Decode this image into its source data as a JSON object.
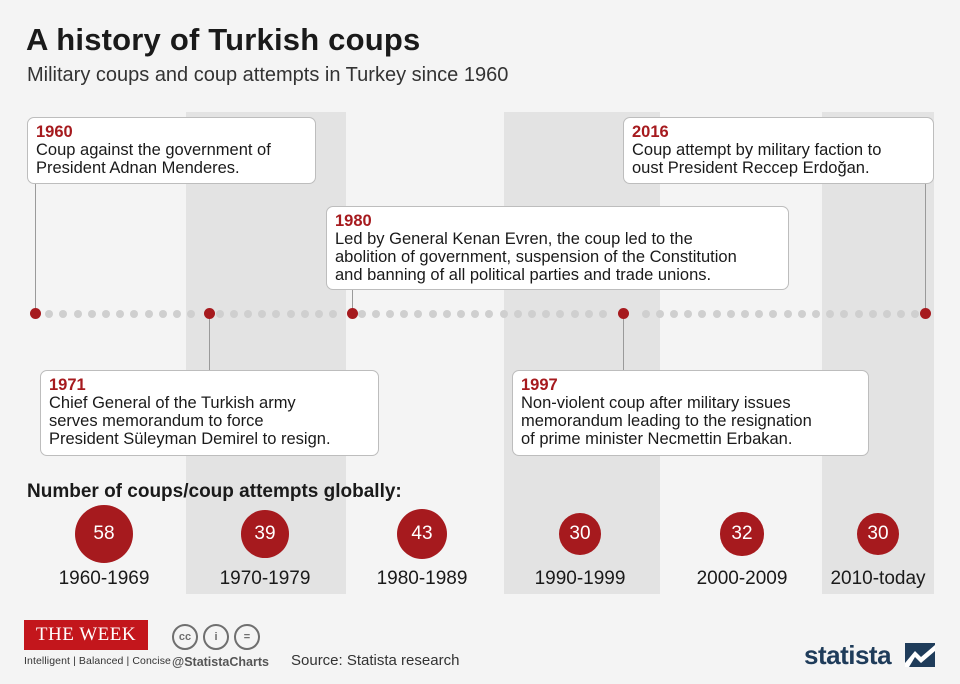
{
  "title": "A history of Turkish coups",
  "subtitle": "Military coups and coup attempts in Turkey since 1960",
  "events": [
    {
      "year": "1960",
      "text": "Coup against the government of\nPresident Adnan Menderes."
    },
    {
      "year": "1971",
      "text": "Chief General of the Turkish army\nserves memorandum to force\nPresident Süleyman Demirel to resign."
    },
    {
      "year": "1980",
      "text": "Led by General Kenan Evren, the coup led to the\nabolition of government, suspension of the Constitution\nand banning of all political parties and trade unions."
    },
    {
      "year": "1997",
      "text": "Non-violent coup after military issues\nmemorandum leading to the resignation\nof prime minister Necmettin Erbakan."
    },
    {
      "year": "2016",
      "text": "Coup attempt by military faction to\noust President Reccep Erdoğan."
    }
  ],
  "chart_data": {
    "type": "bubble",
    "title": "Number of coups/coup attempts globally:",
    "categories": [
      "1960-1969",
      "1970-1979",
      "1980-1989",
      "1990-1999",
      "2000-2009",
      "2010-today"
    ],
    "values": [
      58,
      39,
      43,
      30,
      32,
      30
    ],
    "accent_color": "#a61a1e"
  },
  "footer": {
    "publisher_logo": "THE WEEK",
    "publisher_tagline": "Intelligent | Balanced | Concise",
    "license_icons": [
      "cc-icon",
      "attribution-icon",
      "no-derivatives-icon"
    ],
    "license_glyphs": [
      "cc",
      "i",
      "="
    ],
    "handle": "@StatistaCharts",
    "source": "Source: Statista research",
    "brand": "statista"
  }
}
